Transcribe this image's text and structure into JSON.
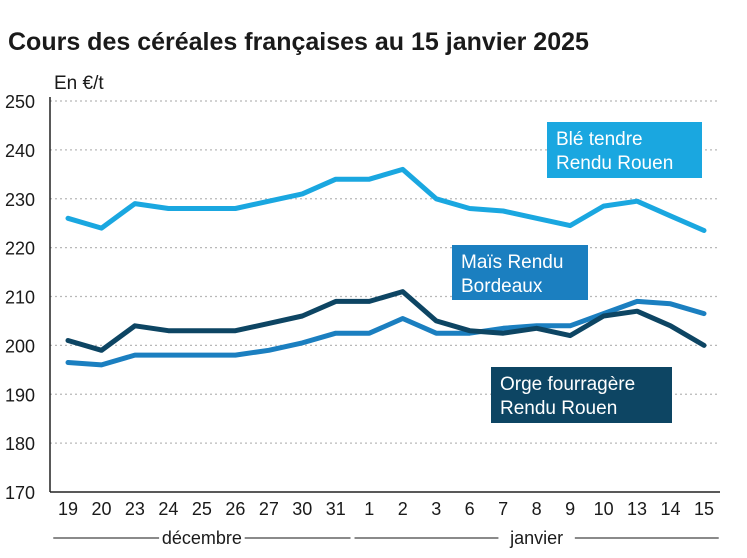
{
  "chart_data": {
    "type": "line",
    "title": "Cours des céréales françaises au 15 janvier 2025",
    "ylabel": "En €/t",
    "xlabel": "",
    "ylim": [
      170,
      250
    ],
    "yticks": [
      "250",
      "240",
      "230",
      "220",
      "210",
      "200",
      "190",
      "180",
      "170"
    ],
    "categories": [
      "19",
      "20",
      "23",
      "24",
      "25",
      "26",
      "27",
      "30",
      "31",
      "1",
      "2",
      "3",
      "6",
      "7",
      "8",
      "9",
      "10",
      "13",
      "14",
      "15"
    ],
    "months": [
      {
        "label": "décembre",
        "from": 0,
        "to": 8
      },
      {
        "label": "janvier",
        "from": 9,
        "to": 19
      }
    ],
    "grid": true,
    "series": [
      {
        "name": "Blé tendre Rendu Rouen",
        "label_lines": [
          "Blé tendre",
          "Rendu Rouen"
        ],
        "color": "#1aa7e0",
        "values": [
          226,
          224,
          229,
          228,
          228,
          228,
          229.5,
          231,
          234,
          234,
          236,
          230,
          228,
          227.5,
          226,
          224.5,
          228.5,
          229.5,
          226.5,
          223.5
        ]
      },
      {
        "name": "Maïs Rendu Bordeaux",
        "label_lines": [
          "Maïs Rendu",
          "Bordeaux"
        ],
        "color": "#1b7fc0",
        "values": [
          196.5,
          196,
          198,
          198,
          198,
          198,
          199,
          200.5,
          202.5,
          202.5,
          205.5,
          202.5,
          202.5,
          203.5,
          204,
          204,
          206.5,
          209,
          208.5,
          206.5
        ]
      },
      {
        "name": "Orge fourragère Rendu Rouen",
        "label_lines": [
          "Orge fourragère",
          "Rendu Rouen"
        ],
        "color": "#0d4563",
        "values": [
          201,
          199,
          204,
          203,
          203,
          203,
          204.5,
          206,
          209,
          209,
          211,
          205,
          203,
          202.5,
          203.5,
          202,
          206,
          207,
          204,
          200
        ]
      }
    ]
  }
}
